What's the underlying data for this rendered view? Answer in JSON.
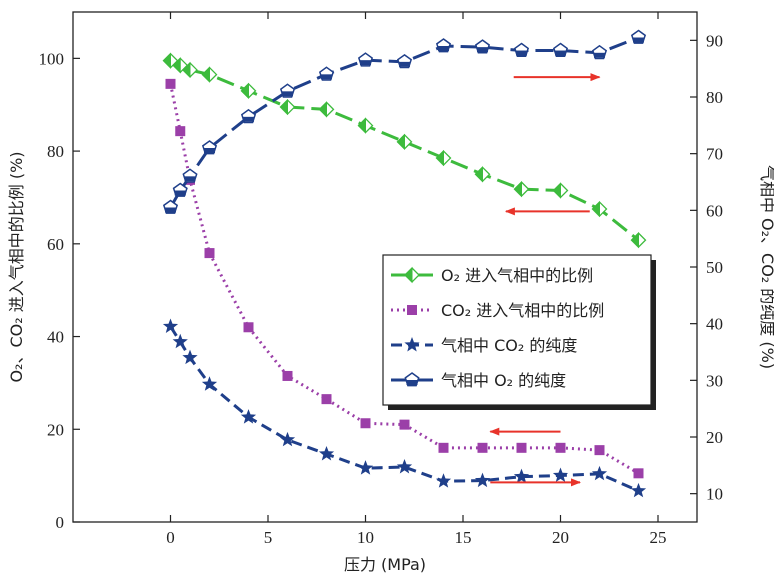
{
  "chart_data": {
    "type": "line",
    "xlabel": "压力 (MPa)",
    "ylabel_left": "O₂、CO₂ 进入气相中的比例 (%)",
    "ylabel_right": "气相中 O₂、CO₂ 的纯度 (%)",
    "xlim": [
      -5,
      27
    ],
    "ylim_left": [
      0,
      110
    ],
    "ylim_right": [
      5,
      95
    ],
    "x_ticks": [
      0,
      5,
      10,
      15,
      20,
      25
    ],
    "y_left_ticks": [
      0,
      20,
      40,
      60,
      80,
      100
    ],
    "y_right_ticks": [
      10,
      20,
      30,
      40,
      50,
      60,
      70,
      80,
      90
    ],
    "grid": false,
    "legend_position": "center-right",
    "series": [
      {
        "name": "O₂ 进入气相中的比例",
        "axis": "left",
        "color": "#3dbb3d",
        "marker": "half-diamond",
        "dash": "long-dash",
        "x": [
          0,
          0.5,
          1,
          2,
          4,
          6,
          8,
          10,
          12,
          14,
          16,
          18,
          20,
          22,
          24
        ],
        "y": [
          99.5,
          98.5,
          97.5,
          96.5,
          93,
          89.5,
          89,
          85.5,
          82,
          78.5,
          75,
          71.8,
          71.5,
          67.5,
          60.8
        ]
      },
      {
        "name": "CO₂ 进入气相中的比例",
        "axis": "left",
        "color": "#9b3fa8",
        "marker": "square",
        "dash": "dotted",
        "x": [
          0,
          0.5,
          1,
          2,
          4,
          6,
          8,
          10,
          12,
          14,
          16,
          18,
          20,
          22,
          24
        ],
        "y": [
          94.5,
          84.3,
          73.8,
          58,
          42,
          31.5,
          26.5,
          21.3,
          21,
          16,
          16,
          16,
          16,
          15.5,
          10.5
        ]
      },
      {
        "name": "气相中 CO₂ 的纯度",
        "axis": "right",
        "color": "#1f3f8a",
        "marker": "star",
        "dash": "dashed",
        "x": [
          0,
          0.5,
          1,
          2,
          4,
          6,
          8,
          10,
          12,
          14,
          16,
          18,
          20,
          22,
          24
        ],
        "y": [
          39.5,
          36.8,
          34,
          29.3,
          23.5,
          19.5,
          17,
          14.5,
          14.7,
          12.2,
          12.3,
          13,
          13.2,
          13.5,
          10.5
        ]
      },
      {
        "name": "气相中 O₂ 的纯度",
        "axis": "right",
        "color": "#1f3f8a",
        "marker": "pentagon",
        "dash": "long-dash",
        "x": [
          0,
          0.5,
          1,
          2,
          4,
          6,
          8,
          10,
          12,
          14,
          16,
          18,
          20,
          22,
          24
        ],
        "y": [
          60.5,
          63.5,
          66,
          71,
          76.5,
          81,
          84,
          86.5,
          86.2,
          89,
          88.8,
          88.2,
          88.2,
          87.8,
          90.5
        ]
      }
    ],
    "annotations": [
      {
        "type": "arrow",
        "direction": "right",
        "axis": "right",
        "x_from": 17.6,
        "x_to": 22,
        "y": 83.5,
        "color": "#e8332a"
      },
      {
        "type": "arrow",
        "direction": "left",
        "axis": "left",
        "x_from": 21.5,
        "x_to": 17.2,
        "y": 67,
        "color": "#e8332a"
      },
      {
        "type": "arrow",
        "direction": "left",
        "axis": "left",
        "x_from": 20,
        "x_to": 16.4,
        "y": 19.5,
        "color": "#e8332a"
      },
      {
        "type": "arrow",
        "direction": "right",
        "axis": "right",
        "x_from": 16.4,
        "x_to": 21,
        "y": 12,
        "color": "#e8332a"
      }
    ]
  }
}
